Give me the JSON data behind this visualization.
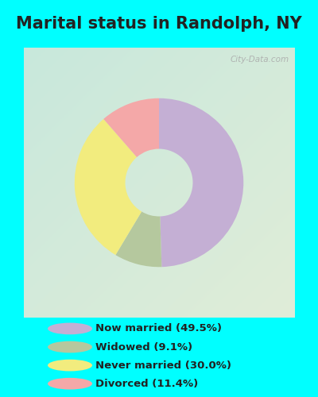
{
  "title": "Marital status in Randolph, NY",
  "slices": [
    49.5,
    9.1,
    30.0,
    11.4
  ],
  "colors": [
    "#c4afd4",
    "#b5c89e",
    "#f2ec7e",
    "#f4a8a8"
  ],
  "labels": [
    "Now married (49.5%)",
    "Widowed (9.1%)",
    "Never married (30.0%)",
    "Divorced (11.4%)"
  ],
  "legend_colors": [
    "#c4afd4",
    "#b5c89e",
    "#f2ec7e",
    "#f4a8a8"
  ],
  "background_topleft": "#c8e8dc",
  "background_bottomright": "#e0edd8",
  "outer_background": "#00ffff",
  "title_fontsize": 15,
  "title_color": "#222222",
  "watermark": "City-Data.com",
  "start_angle": 90,
  "donut_width": 0.6
}
